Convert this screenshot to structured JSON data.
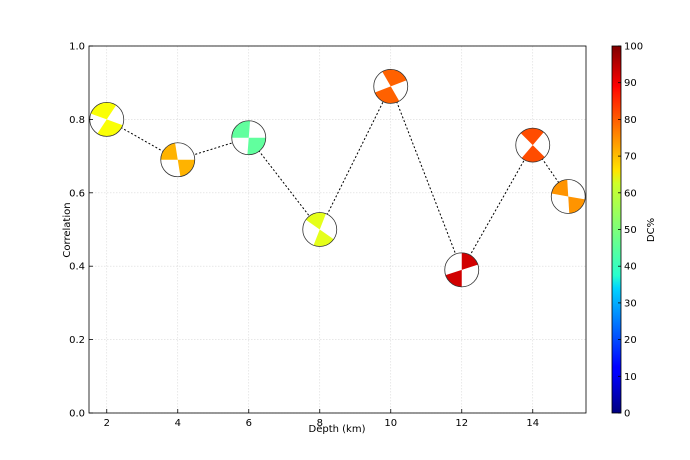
{
  "chart_data": {
    "type": "scatter",
    "xlabel": "Depth (km)",
    "ylabel": "Correlation",
    "xlim": [
      1.5,
      15.5
    ],
    "ylim": [
      0.0,
      1.0
    ],
    "x_ticks": [
      "2",
      "4",
      "6",
      "8",
      "10",
      "12",
      "14"
    ],
    "y_ticks": [
      "0.0",
      "0.2",
      "0.4",
      "0.6",
      "0.8",
      "1.0"
    ],
    "grid": true,
    "connecting_line": "dotted",
    "series": [
      {
        "x": [
          2,
          4,
          6,
          8,
          10,
          12,
          14,
          15
        ],
        "y": [
          0.8,
          0.69,
          0.75,
          0.5,
          0.89,
          0.39,
          0.73,
          0.59
        ],
        "dc_percent": [
          62,
          70,
          47,
          60,
          78,
          92,
          80,
          73
        ]
      }
    ],
    "colorbar": {
      "label": "DC%",
      "min": 0,
      "max": 100,
      "ticks": [
        "0",
        "10",
        "20",
        "30",
        "40",
        "50",
        "60",
        "70",
        "80",
        "90",
        "100"
      ],
      "colormap": "jet"
    }
  }
}
